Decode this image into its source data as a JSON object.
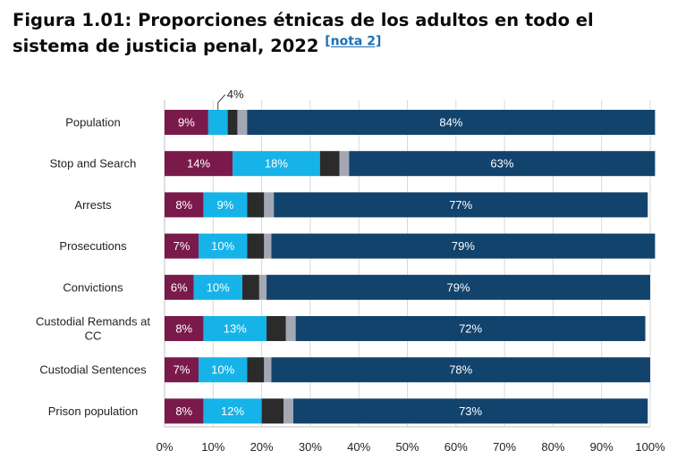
{
  "figure": {
    "title": "Figura 1.01: Proporciones étnicas de los adultos en todo el sistema de justicia penal, 2022",
    "note_link": "[nota 2]"
  },
  "chart_data": {
    "type": "bar",
    "orientation": "horizontal",
    "stacked": true,
    "categories": [
      "Population",
      "Stop and Search",
      "Arrests",
      "Prosecutions",
      "Convictions",
      "Custodial Remands at CC",
      "Custodial Sentences",
      "Prison population"
    ],
    "series": [
      {
        "values": [
          9,
          14,
          8,
          7,
          6,
          8,
          7,
          8
        ],
        "color": "#7a1a4b",
        "labels": [
          "9%",
          "14%",
          "8%",
          "7%",
          "6%",
          "8%",
          "7%",
          "8%"
        ]
      },
      {
        "values": [
          4,
          18,
          9,
          10,
          10,
          13,
          10,
          12
        ],
        "color": "#16b3e8",
        "labels": [
          "",
          "18%",
          "9%",
          "10%",
          "10%",
          "13%",
          "10%",
          "12%"
        ]
      },
      {
        "values": [
          2,
          4,
          3.5,
          3.5,
          3.5,
          4,
          3.5,
          4.5
        ],
        "color": "#2b2b2b",
        "labels": [
          "",
          "",
          "",
          "",
          "",
          "",
          "",
          ""
        ]
      },
      {
        "values": [
          2,
          2,
          2,
          1.5,
          1.5,
          2,
          1.5,
          2
        ],
        "color": "#a3a8b4",
        "labels": [
          "",
          "",
          "",
          "",
          "",
          "",
          "",
          ""
        ]
      },
      {
        "values": [
          84,
          63,
          77,
          79,
          79,
          72,
          78,
          73
        ],
        "color": "#12436d",
        "labels": [
          "84%",
          "63%",
          "77%",
          "79%",
          "79%",
          "72%",
          "78%",
          "73%"
        ]
      }
    ],
    "callout": {
      "category": "Population",
      "series_index": 1,
      "label": "4%"
    },
    "xlim": [
      0,
      100
    ],
    "xticks": [
      "0%",
      "10%",
      "20%",
      "30%",
      "40%",
      "50%",
      "60%",
      "70%",
      "80%",
      "90%",
      "100%"
    ],
    "grid": true,
    "legend": "none",
    "label_color": "#ffffff"
  }
}
